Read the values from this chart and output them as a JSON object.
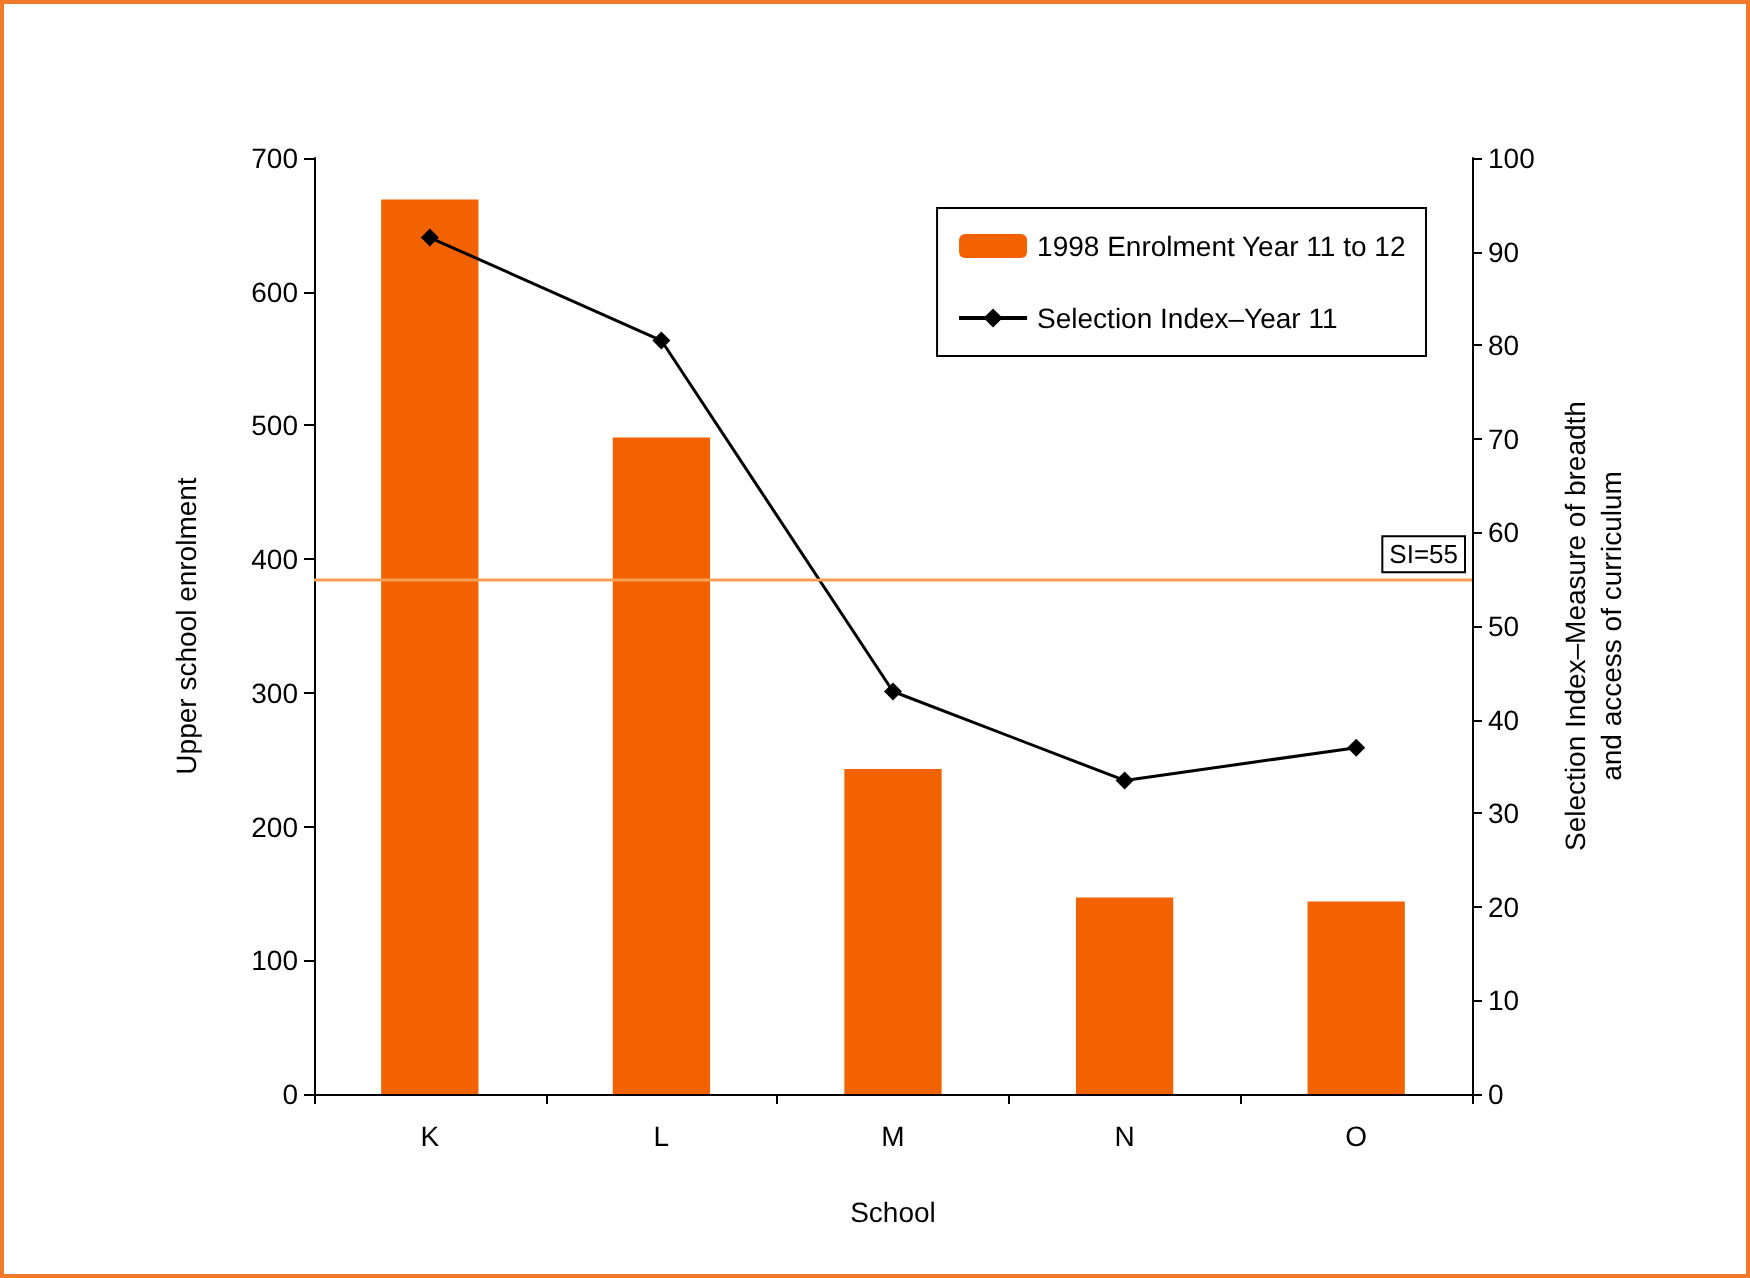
{
  "chart_data": {
    "type": "bar",
    "xlabel": "School",
    "ylabel": "Upper school enrolment",
    "y2label": "Selection Index–Measure of breadth\nand access of curriculum",
    "categories": [
      "K",
      "L",
      "M",
      "N",
      "O"
    ],
    "series": [
      {
        "name": "1998 Enrolment Year 11 to 12",
        "color": "#f26200",
        "values": [
          669,
          491,
          243,
          147,
          144
        ]
      },
      {
        "name": "Selection Index–Year 11",
        "type": "line",
        "axis": "y2",
        "color": "#000000",
        "marker": "diamond",
        "values": [
          91.5,
          80.5,
          43,
          33.5,
          37
        ]
      }
    ],
    "ylim": [
      0,
      700
    ],
    "yticks": [
      0,
      100,
      200,
      300,
      400,
      500,
      600,
      700
    ],
    "y2lim": [
      0,
      100
    ],
    "y2ticks": [
      0,
      10,
      20,
      30,
      40,
      50,
      60,
      70,
      80,
      90,
      100
    ],
    "ref_lines": [
      {
        "axis": "y2",
        "value": 55,
        "label": "SI=55",
        "color": "#f5a055"
      }
    ],
    "legend": "top right"
  }
}
